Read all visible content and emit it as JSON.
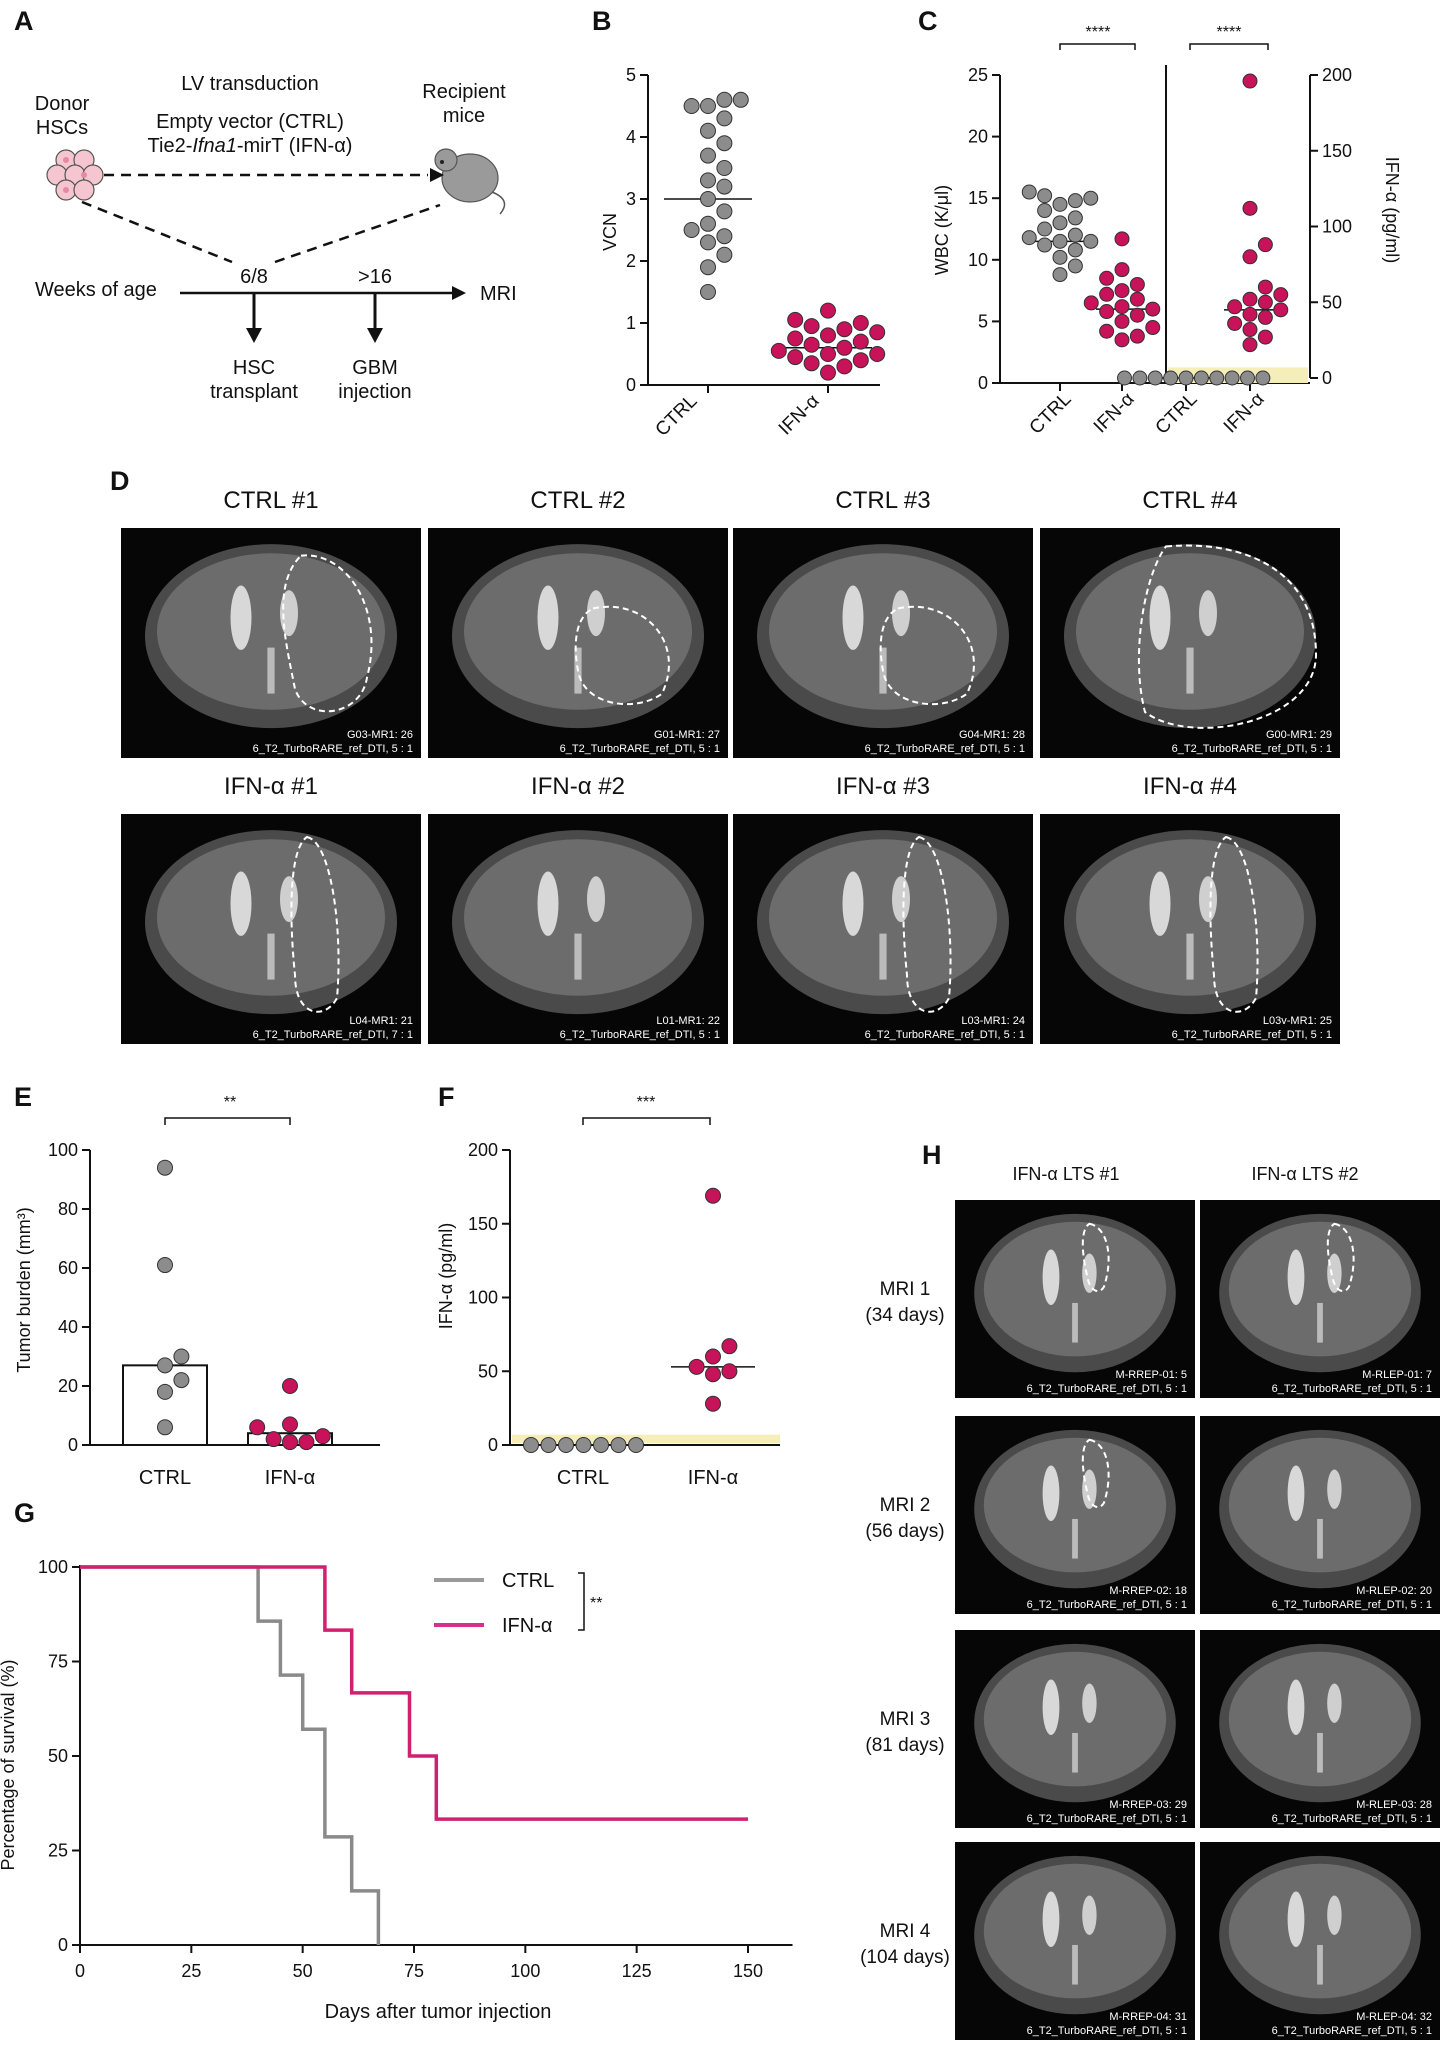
{
  "colors": {
    "ctrl": "#8a8a8a",
    "ifn": "#d02070",
    "ifn_title": "#d6308c",
    "ctrl_title": "#9a9a9a",
    "band": "#f5eeb8",
    "dot_ctrl": "#8c8c8c",
    "dot_ifn": "#c8125a"
  },
  "panel_a": {
    "label": "A",
    "lv_title": "LV transduction",
    "donor": [
      "Donor",
      "HSCs"
    ],
    "recipient": [
      "Recipient",
      "mice"
    ],
    "vector_line1": "Empty vector (CTRL)",
    "vector_line2_a": "Tie2-",
    "vector_line2_b": "Ifna1",
    "vector_line2_c": "-mirT (IFN-α)",
    "weeks": "Weeks of age",
    "t1": "6/8",
    "t2": ">16",
    "mri": "MRI",
    "hsc": [
      "HSC",
      "transplant"
    ],
    "gbm": [
      "GBM",
      "injection"
    ]
  },
  "panel_b": {
    "label": "B",
    "ylabel": "VCN",
    "yticks": [
      "0",
      "1",
      "2",
      "3",
      "4",
      "5"
    ],
    "categories": [
      "CTRL",
      "IFN-α"
    ]
  },
  "panel_c": {
    "label": "C",
    "ylabel_left": "WBC (K/μl)",
    "ylabel_right": "IFN-α (pg/ml)",
    "yticks_left": [
      "0",
      "5",
      "10",
      "15",
      "20",
      "25"
    ],
    "yticks_right": [
      "0",
      "50",
      "100",
      "150",
      "200"
    ],
    "categories": [
      "CTRL",
      "IFN-α",
      "CTRL",
      "IFN-α"
    ],
    "sig": [
      "****",
      "****"
    ]
  },
  "panel_d": {
    "label": "D",
    "ctrl_titles": [
      "CTRL #1",
      "CTRL #2",
      "CTRL #3",
      "CTRL #4"
    ],
    "ifn_titles": [
      "IFN-α #1",
      "IFN-α #2",
      "IFN-α #3",
      "IFN-α #4"
    ],
    "ctrl_caps": [
      [
        "G03-MR1: 26",
        "6_T2_TurboRARE_ref_DTI, 5 : 1"
      ],
      [
        "G01-MR1: 27",
        "6_T2_TurboRARE_ref_DTI, 5 : 1"
      ],
      [
        "G04-MR1: 28",
        "6_T2_TurboRARE_ref_DTI, 5 : 1"
      ],
      [
        "G00-MR1: 29",
        "6_T2_TurboRARE_ref_DTI, 5 : 1"
      ]
    ],
    "ifn_caps": [
      [
        "L04-MR1: 21",
        "6_T2_TurboRARE_ref_DTI, 7 : 1"
      ],
      [
        "L01-MR1: 22",
        "6_T2_TurboRARE_ref_DTI, 5 : 1"
      ],
      [
        "L03-MR1: 24",
        "6_T2_TurboRARE_ref_DTI, 5 : 1"
      ],
      [
        "L03v-MR1: 25",
        "6_T2_TurboRARE_ref_DTI, 5 : 1"
      ]
    ]
  },
  "panel_e": {
    "label": "E",
    "ylabel": "Tumor burden (mm³)",
    "yticks": [
      "0",
      "20",
      "40",
      "60",
      "80",
      "100"
    ],
    "categories": [
      "CTRL",
      "IFN-α"
    ],
    "sig": "**"
  },
  "panel_f": {
    "label": "F",
    "ylabel": "IFN-α (pg/ml)",
    "yticks": [
      "0",
      "50",
      "100",
      "150",
      "200"
    ],
    "categories": [
      "CTRL",
      "IFN-α"
    ],
    "sig": "***"
  },
  "panel_g": {
    "label": "G",
    "ylabel": "Percentage of survival (%)",
    "xlabel": "Days after tumor injection",
    "yticks": [
      "0",
      "25",
      "50",
      "75",
      "100"
    ],
    "xticks": [
      "0",
      "25",
      "50",
      "75",
      "100",
      "125",
      "150"
    ],
    "legend": [
      "CTRL",
      "IFN-α"
    ],
    "sig": "**"
  },
  "panel_h": {
    "label": "H",
    "cols": [
      "IFN-α LTS #1",
      "IFN-α LTS #2"
    ],
    "rows": [
      [
        "MRI 1",
        "(34 days)"
      ],
      [
        "MRI 2",
        "(56 days)"
      ],
      [
        "MRI 3",
        "(81 days)"
      ],
      [
        "MRI 4",
        "(104 days)"
      ]
    ],
    "caps_left": [
      [
        "M-RREP-01: 5",
        "6_T2_TurboRARE_ref_DTI, 5 : 1"
      ],
      [
        "M-RREP-02: 18",
        "6_T2_TurboRARE_ref_DTI, 5 : 1"
      ],
      [
        "M-RREP-03: 29",
        "6_T2_TurboRARE_ref_DTI, 5 : 1"
      ],
      [
        "M-RREP-04: 31",
        "6_T2_TurboRARE_ref_DTI, 5 : 1"
      ]
    ],
    "caps_right": [
      [
        "M-RLEP-01: 7",
        "6_T2_TurboRARE_ref_DTI, 5 : 1"
      ],
      [
        "M-RLEP-02: 20",
        "6_T2_TurboRARE_ref_DTI, 5 : 1"
      ],
      [
        "M-RLEP-03: 28",
        "6_T2_TurboRARE_ref_DTI, 5 : 1"
      ],
      [
        "M-RLEP-04: 32",
        "6_T2_TurboRARE_ref_DTI, 5 : 1"
      ]
    ]
  },
  "chart_data": [
    {
      "panel": "B",
      "type": "scatter",
      "ylabel": "VCN",
      "ylim": [
        0,
        5
      ],
      "categories": [
        "CTRL",
        "IFN-α"
      ],
      "series": [
        {
          "name": "CTRL",
          "values": [
            1.5,
            1.9,
            2.1,
            2.3,
            2.4,
            2.5,
            2.6,
            2.8,
            3.0,
            3.2,
            3.3,
            3.5,
            3.7,
            3.9,
            4.1,
            4.3,
            4.5,
            4.5,
            4.6,
            4.6
          ],
          "median": 3.0
        },
        {
          "name": "IFN-α",
          "values": [
            0.2,
            0.3,
            0.35,
            0.4,
            0.45,
            0.5,
            0.5,
            0.55,
            0.6,
            0.65,
            0.7,
            0.75,
            0.8,
            0.85,
            0.9,
            0.95,
            1.0,
            1.05,
            1.2
          ],
          "median": 0.6
        }
      ]
    },
    {
      "panel": "C-left",
      "type": "scatter",
      "ylabel": "WBC (K/μl)",
      "ylim": [
        0,
        25
      ],
      "categories": [
        "CTRL",
        "IFN-α"
      ],
      "series": [
        {
          "name": "CTRL",
          "values": [
            8.8,
            9.5,
            10.2,
            10.8,
            11.2,
            11.5,
            11.5,
            11.8,
            12.0,
            12.5,
            13.0,
            13.4,
            14.0,
            14.5,
            14.8,
            15.0,
            15.2,
            15.5
          ],
          "median": 11.5
        },
        {
          "name": "IFN-α",
          "values": [
            3.5,
            3.8,
            4.2,
            4.5,
            5.0,
            5.5,
            5.8,
            6.0,
            6.2,
            6.5,
            6.8,
            7.2,
            7.5,
            8.0,
            8.5,
            9.2,
            11.7
          ],
          "median": 6.0
        }
      ]
    },
    {
      "panel": "C-right",
      "type": "scatter",
      "ylabel": "IFN-α (pg/ml)",
      "ylim": [
        0,
        200
      ],
      "categories": [
        "CTRL",
        "IFN-α"
      ],
      "series": [
        {
          "name": "CTRL",
          "values": [
            0,
            0,
            0,
            0,
            0,
            0,
            0,
            0,
            0,
            0
          ],
          "median": 0
        },
        {
          "name": "IFN-α",
          "values": [
            22,
            27,
            32,
            36,
            40,
            42,
            45,
            47,
            50,
            52,
            55,
            60,
            80,
            88,
            112,
            196
          ],
          "median": 45
        }
      ]
    },
    {
      "panel": "E",
      "type": "bar",
      "ylabel": "Tumor burden (mm³)",
      "ylim": [
        0,
        100
      ],
      "categories": [
        "CTRL",
        "IFN-α"
      ],
      "values": [
        27,
        4
      ],
      "points": [
        [
          6,
          18,
          22,
          27,
          30,
          61,
          94
        ],
        [
          1,
          1,
          2,
          3,
          6,
          7,
          20
        ]
      ]
    },
    {
      "panel": "F",
      "type": "scatter",
      "ylabel": "IFN-α (pg/ml)",
      "ylim": [
        0,
        200
      ],
      "categories": [
        "CTRL",
        "IFN-α"
      ],
      "series": [
        {
          "name": "CTRL",
          "values": [
            0,
            0,
            0,
            0,
            0,
            0,
            0
          ],
          "median": 0
        },
        {
          "name": "IFN-α",
          "values": [
            28,
            48,
            50,
            53,
            60,
            67,
            169
          ],
          "median": 53
        }
      ]
    },
    {
      "panel": "G",
      "type": "line",
      "xlabel": "Days after tumor injection",
      "ylabel": "Percentage of survival (%)",
      "xlim": [
        0,
        160
      ],
      "ylim": [
        0,
        100
      ],
      "series": [
        {
          "name": "CTRL",
          "steps": [
            [
              0,
              100
            ],
            [
              40,
              100
            ],
            [
              40,
              85.7
            ],
            [
              45,
              85.7
            ],
            [
              45,
              71.4
            ],
            [
              50,
              71.4
            ],
            [
              50,
              57.1
            ],
            [
              55,
              57.1
            ],
            [
              55,
              28.6
            ],
            [
              61,
              28.6
            ],
            [
              61,
              14.3
            ],
            [
              67,
              14.3
            ],
            [
              67,
              0
            ]
          ]
        },
        {
          "name": "IFN-α",
          "steps": [
            [
              0,
              100
            ],
            [
              55,
              100
            ],
            [
              55,
              83.3
            ],
            [
              61,
              83.3
            ],
            [
              61,
              66.7
            ],
            [
              74,
              66.7
            ],
            [
              74,
              50
            ],
            [
              80,
              50
            ],
            [
              80,
              33.3
            ],
            [
              150,
              33.3
            ]
          ]
        }
      ]
    }
  ]
}
